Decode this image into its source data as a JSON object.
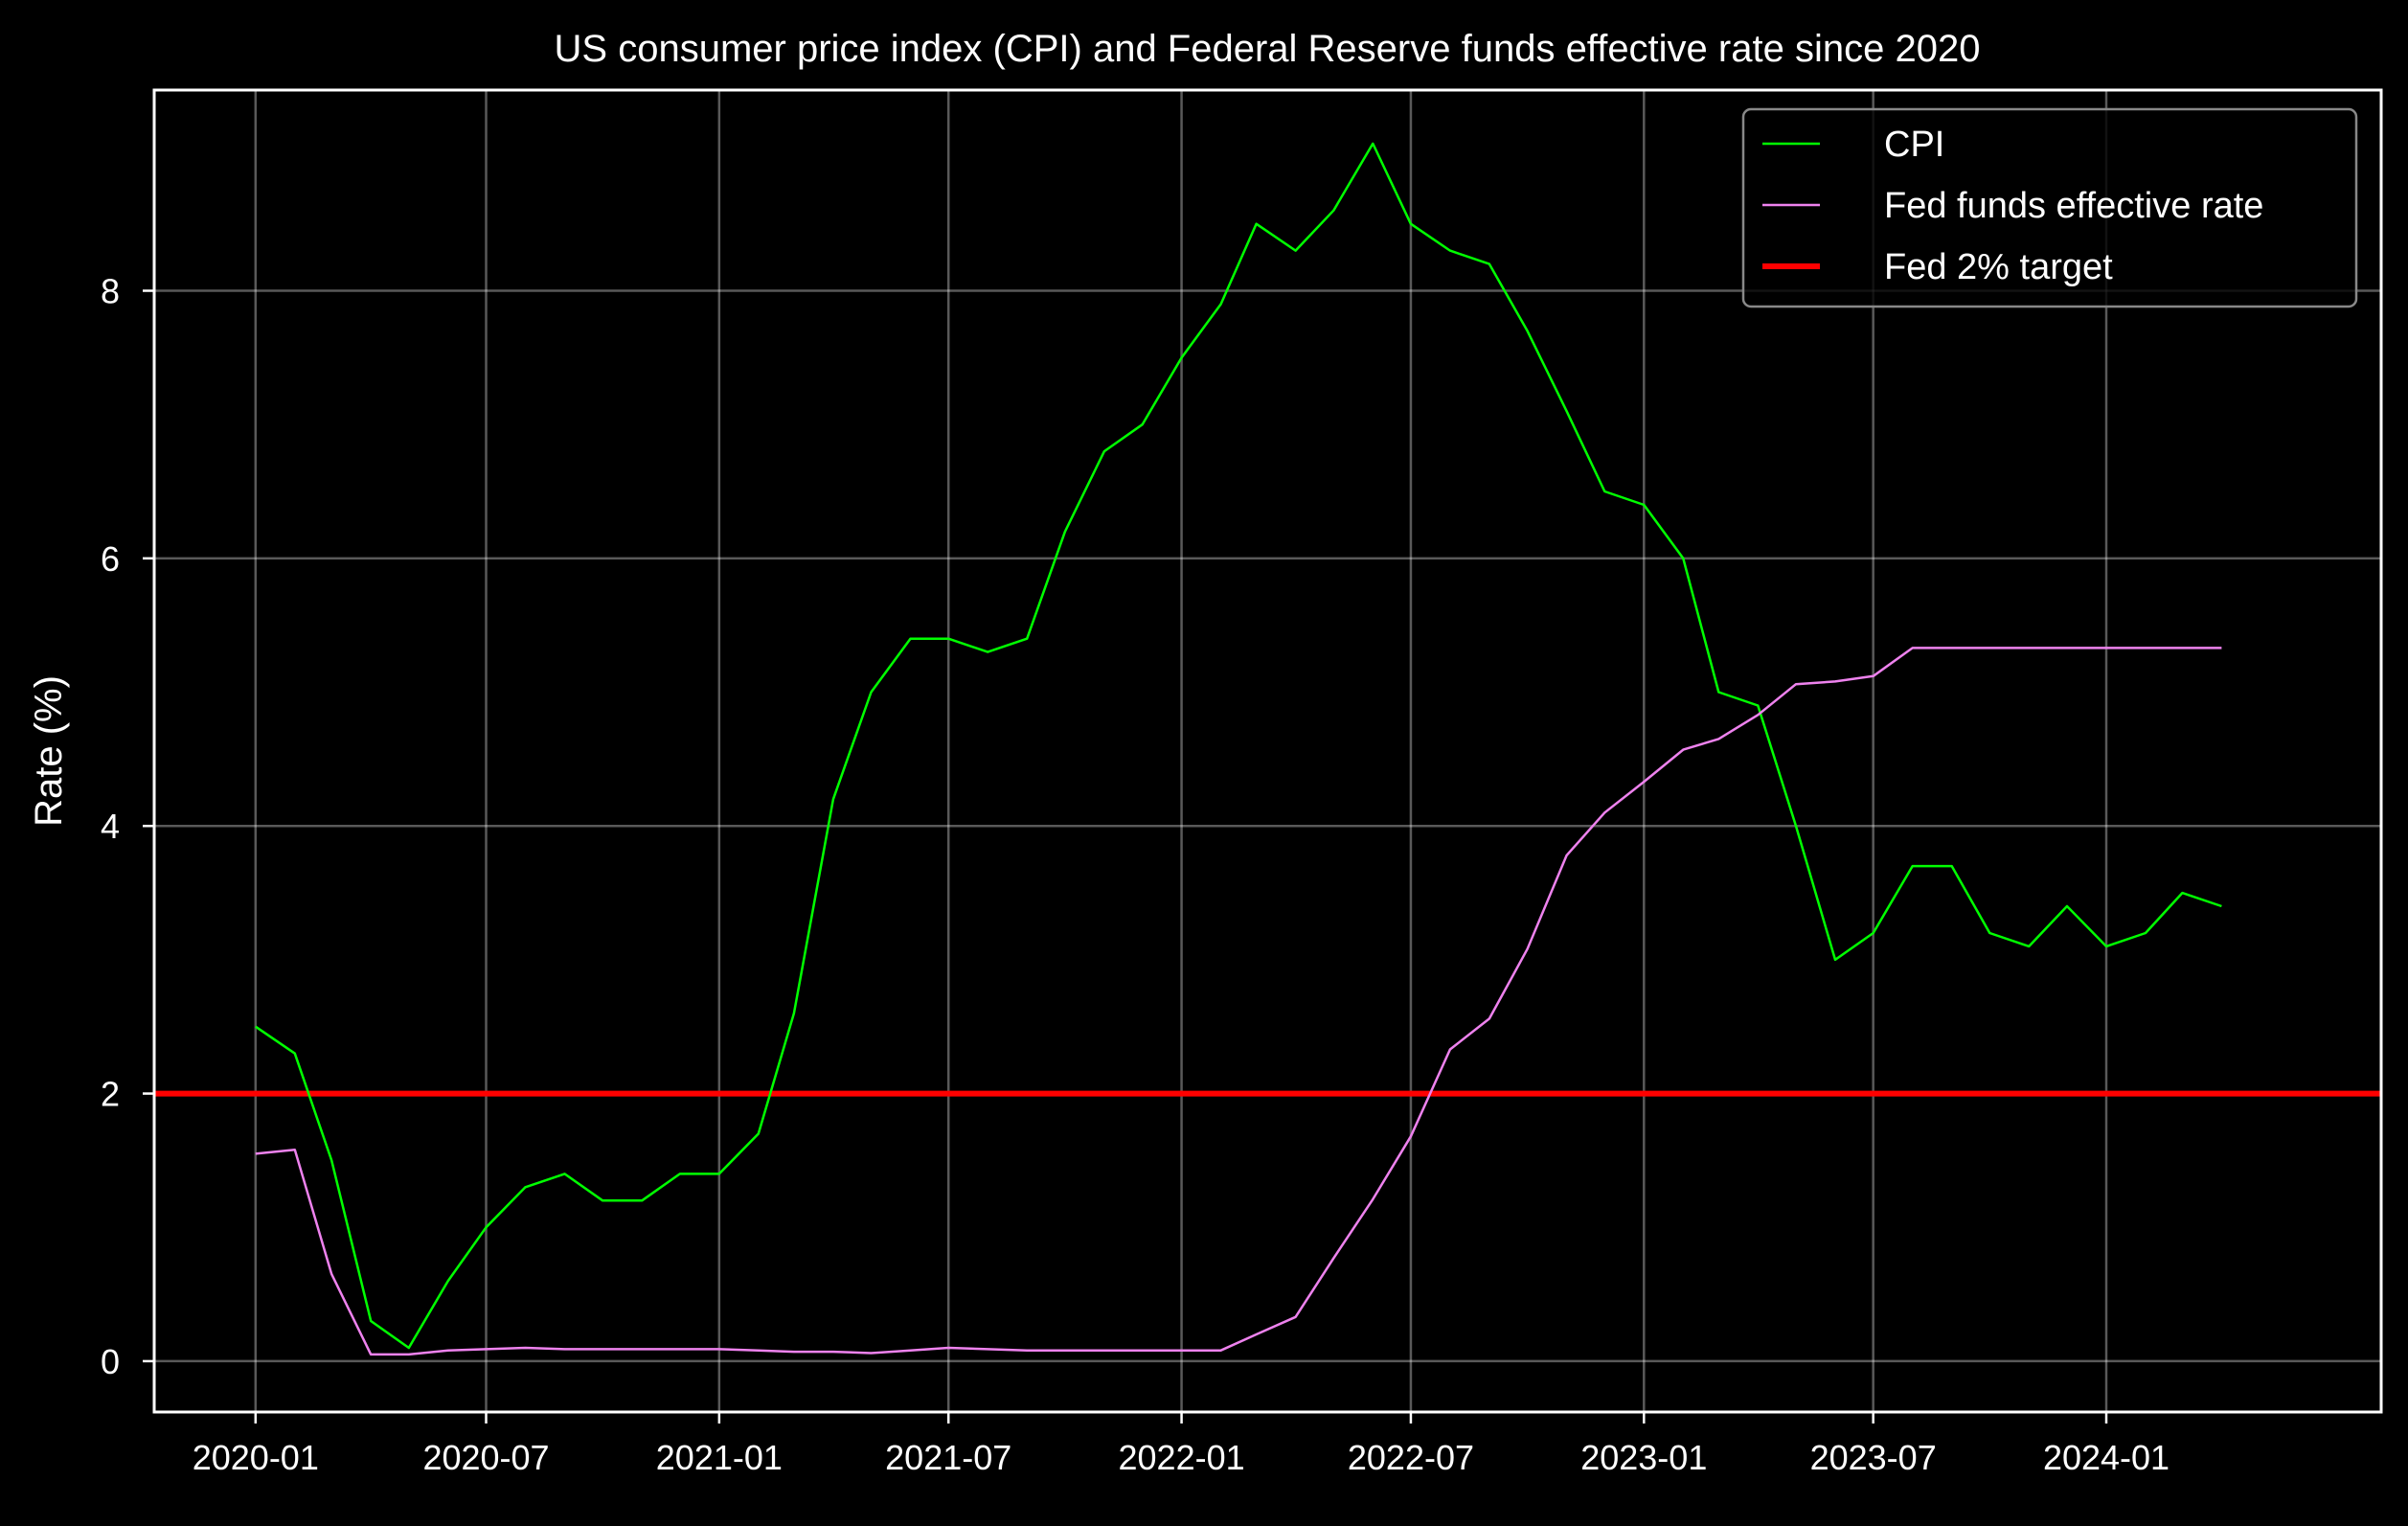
{
  "chart_data": {
    "type": "line",
    "title": "US consumer price index (CPI) and Federal Reserve funds effective rate since 2020",
    "xlabel": "",
    "ylabel": "Rate (%)",
    "x_tick_labels": [
      "2020-01",
      "2020-07",
      "2021-01",
      "2021-07",
      "2022-01",
      "2022-07",
      "2023-01",
      "2023-07",
      "2024-01"
    ],
    "y_ticks": [
      0,
      2,
      4,
      6,
      8
    ],
    "xlim": [
      "2019-10-13",
      "2024-08-05"
    ],
    "ylim": [
      -0.38,
      9.5
    ],
    "grid": true,
    "legend_position": "top-right",
    "x": [
      "2020-01",
      "2020-02",
      "2020-03",
      "2020-04",
      "2020-05",
      "2020-06",
      "2020-07",
      "2020-08",
      "2020-09",
      "2020-10",
      "2020-11",
      "2020-12",
      "2021-01",
      "2021-02",
      "2021-03",
      "2021-04",
      "2021-05",
      "2021-06",
      "2021-07",
      "2021-08",
      "2021-09",
      "2021-10",
      "2021-11",
      "2021-12",
      "2022-01",
      "2022-02",
      "2022-03",
      "2022-04",
      "2022-05",
      "2022-06",
      "2022-07",
      "2022-08",
      "2022-09",
      "2022-10",
      "2022-11",
      "2022-12",
      "2023-01",
      "2023-02",
      "2023-03",
      "2023-04",
      "2023-05",
      "2023-06",
      "2023-07",
      "2023-08",
      "2023-09",
      "2023-10",
      "2023-11",
      "2023-12",
      "2024-01",
      "2024-02",
      "2024-03",
      "2024-04"
    ],
    "series": [
      {
        "name": "CPI",
        "color": "#00ff00",
        "values": [
          2.5,
          2.3,
          1.5,
          0.3,
          0.1,
          0.6,
          1.0,
          1.3,
          1.4,
          1.2,
          1.2,
          1.4,
          1.4,
          1.7,
          2.6,
          4.2,
          5.0,
          5.4,
          5.4,
          5.3,
          5.4,
          6.2,
          6.8,
          7.0,
          7.5,
          7.9,
          8.5,
          8.3,
          8.6,
          9.1,
          8.5,
          8.3,
          8.2,
          7.7,
          7.1,
          6.5,
          6.4,
          6.0,
          5.0,
          4.9,
          4.0,
          3.0,
          3.2,
          3.7,
          3.7,
          3.2,
          3.1,
          3.4,
          3.1,
          3.2,
          3.5,
          3.4
        ]
      },
      {
        "name": "Fed funds effective rate",
        "color": "#ee82ee",
        "values": [
          1.55,
          1.58,
          0.65,
          0.05,
          0.05,
          0.08,
          0.09,
          0.1,
          0.09,
          0.09,
          0.09,
          0.09,
          0.09,
          0.08,
          0.07,
          0.07,
          0.06,
          0.08,
          0.1,
          0.09,
          0.08,
          0.08,
          0.08,
          0.08,
          0.08,
          0.08,
          0.2,
          0.33,
          0.77,
          1.21,
          1.68,
          2.33,
          2.56,
          3.08,
          3.78,
          4.1,
          4.33,
          4.57,
          4.65,
          4.83,
          5.06,
          5.08,
          5.12,
          5.33,
          5.33,
          5.33,
          5.33,
          5.33,
          5.33,
          5.33,
          5.33,
          5.33
        ]
      },
      {
        "name": "Fed 2% target",
        "color": "#ff0000",
        "constant": 2
      }
    ]
  }
}
